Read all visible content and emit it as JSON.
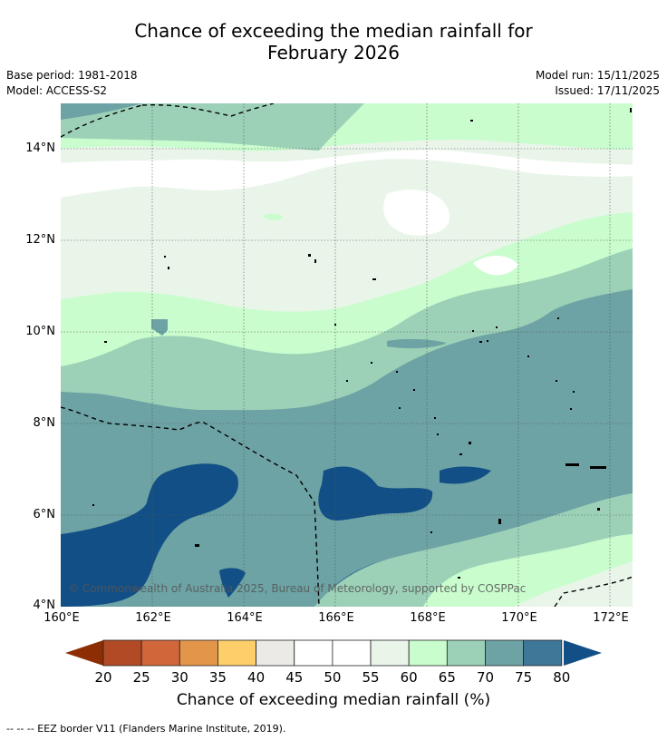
{
  "title": {
    "line1": "Chance of exceeding the median rainfall for",
    "line2": "February 2026"
  },
  "meta": {
    "base_period": "Base period: 1981-2018",
    "model": "Model: ACCESS-S2",
    "model_run": "Model run: 15/11/2025",
    "issued": "Issued: 17/11/2025"
  },
  "map": {
    "lat_labels": [
      "14°N",
      "12°N",
      "10°N",
      "8°N",
      "6°N",
      "4°N"
    ],
    "lon_labels": [
      "160°E",
      "162°E",
      "164°E",
      "166°E",
      "168°E",
      "170°E",
      "172°E"
    ],
    "copyright": "© Commonwealth of Australia 2025, Bureau of Meteorology, supported by COSPPac"
  },
  "colorbar": {
    "ticks": [
      "20",
      "25",
      "30",
      "35",
      "40",
      "45",
      "50",
      "55",
      "60",
      "65",
      "70",
      "75",
      "80"
    ],
    "colors": [
      "#8c2d04",
      "#b34a26",
      "#d0663a",
      "#e3954a",
      "#fece6a",
      "#ebeae6",
      "#ffffff",
      "#ffffff",
      "#eaf5ea",
      "#c9fdce",
      "#9dd1b7",
      "#6da3a5",
      "#3f7799",
      "#124f86"
    ],
    "title": "Chance of exceeding median rainfall (%)"
  },
  "footer": "--  --  -- EEZ border V11 (Flanders Marine Institute, 2019)."
}
